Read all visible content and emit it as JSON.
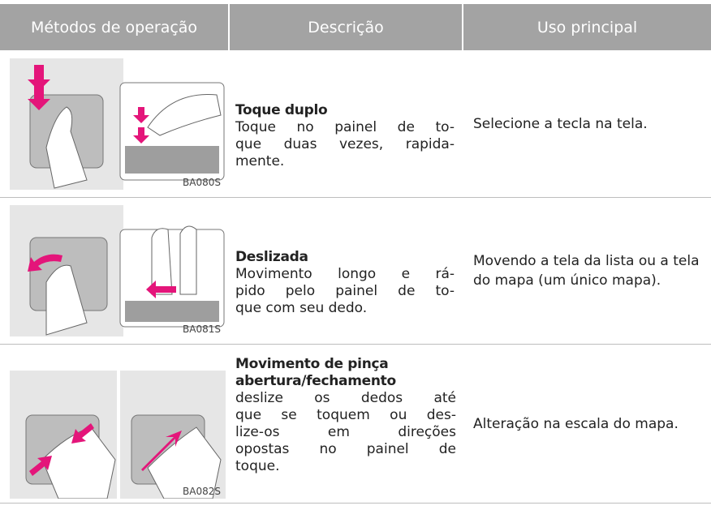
{
  "table": {
    "header": [
      "Métodos de operação",
      "Descrição",
      "Uso principal"
    ],
    "rows": [
      {
        "image_code": "BA080S",
        "title": "Toque duplo",
        "description": [
          "Toque no painel de to-",
          "que duas vezes, rapida-",
          "mente."
        ],
        "use": "Selecione a tecla na tela."
      },
      {
        "image_code": "BA081S",
        "title": "Deslizada",
        "description": [
          "Movimento longo e rá-",
          "pido pelo painel de to-",
          "que com seu dedo."
        ],
        "use": "Movendo a tela da lista ou a tela do mapa (um único mapa)."
      },
      {
        "image_code": "BA082S",
        "title": "Movimento de pinça abertura/fechamento",
        "description": [
          "deslize os dedos até",
          "que se toquem ou des-",
          "lize-os em direções",
          "opostas no painel de",
          "toque."
        ],
        "use": "Alteração na escala do mapa."
      }
    ]
  }
}
